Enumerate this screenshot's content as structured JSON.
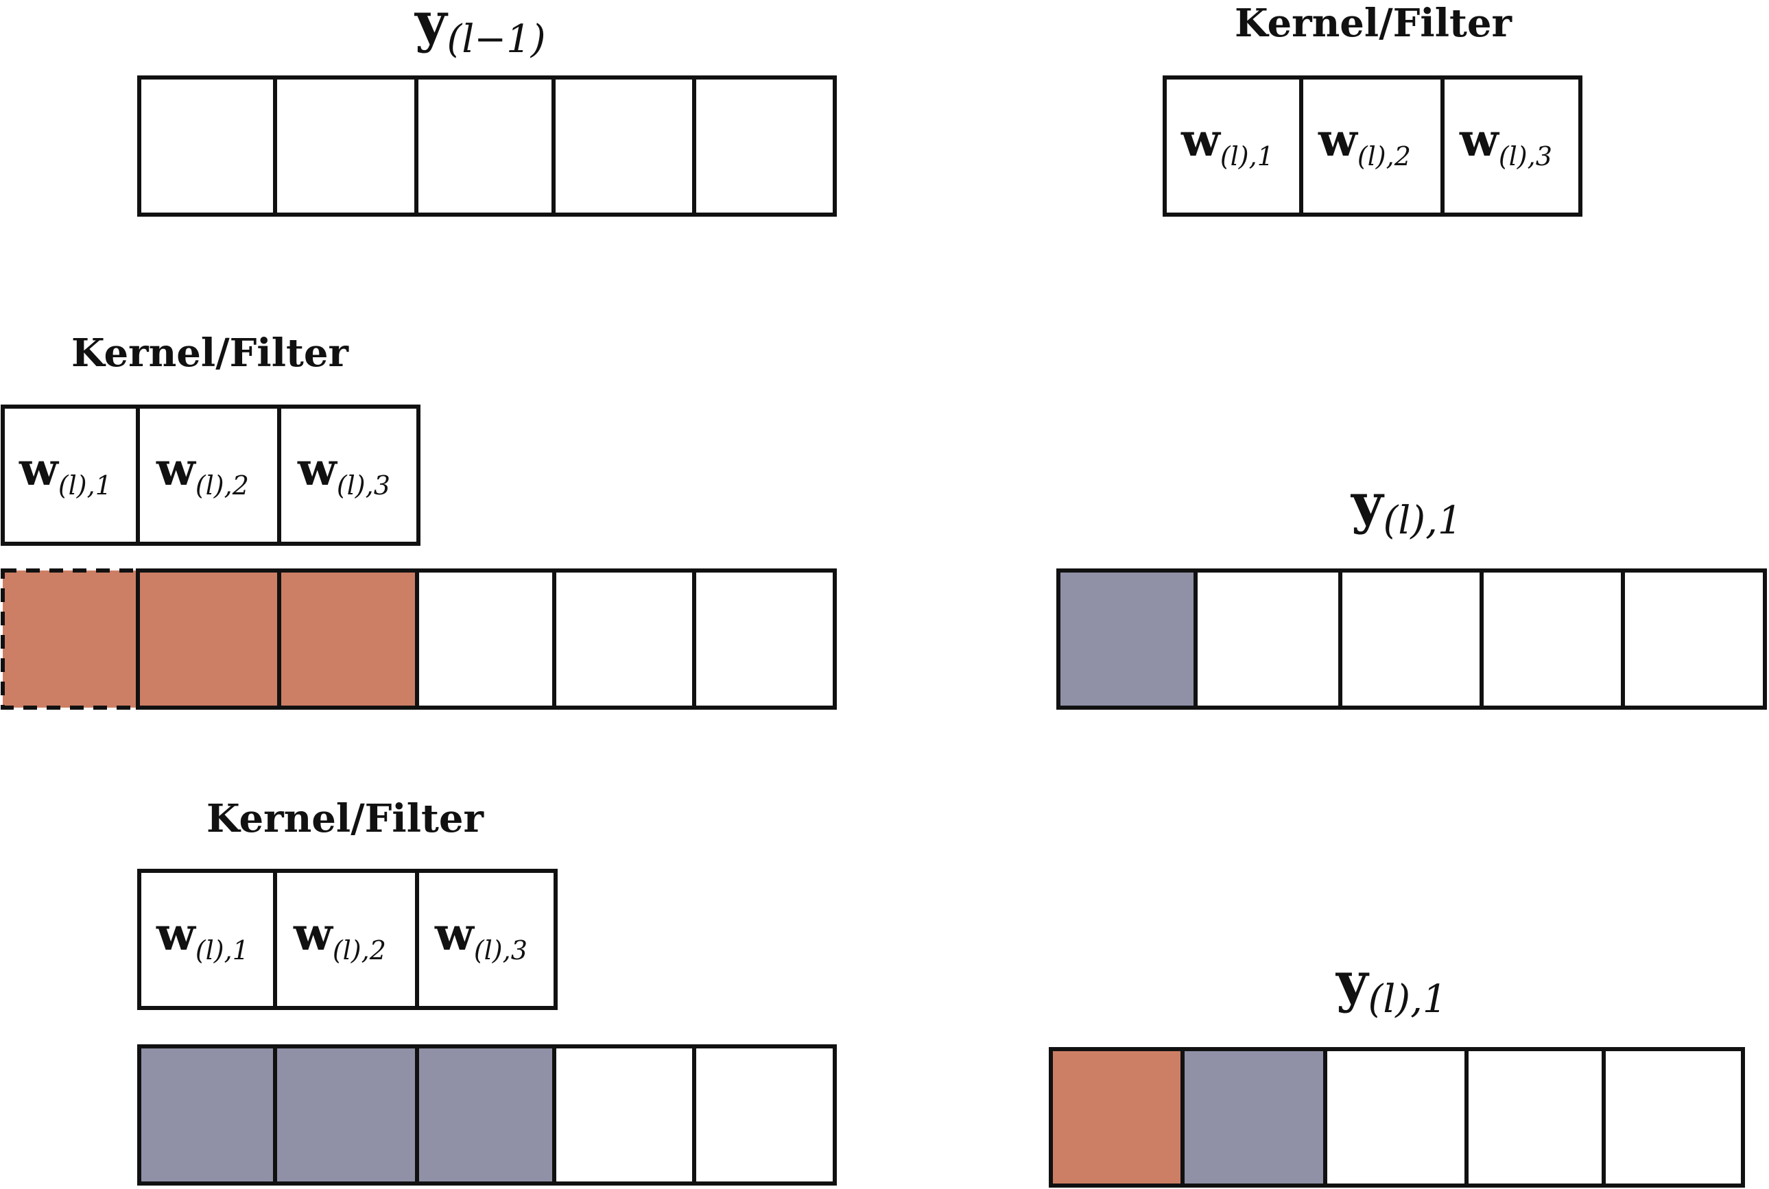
{
  "labels": {
    "input_vector_main": "y",
    "input_vector_sub": "(l−1)",
    "output_vector_main": "y",
    "output_vector_sub": "(l),1",
    "kernel_title": "Kernel/Filter",
    "weight_main": "w",
    "weight_subs": [
      "(l),1",
      "(l),2",
      "(l),3"
    ]
  },
  "colors": {
    "orange_highlight": "#cd7f65",
    "gray_highlight": "#9091a7",
    "border": "#111111",
    "empty": "#ffffff"
  },
  "panels": [
    {
      "name": "input-vector",
      "cells": [
        "empty",
        "empty",
        "empty",
        "empty",
        "empty"
      ]
    },
    {
      "name": "kernel-top-right",
      "cells": [
        "w1",
        "w2",
        "w3"
      ]
    },
    {
      "name": "step-1-input",
      "cells": [
        "orange-padding",
        "orange",
        "orange",
        "empty",
        "empty",
        "empty"
      ]
    },
    {
      "name": "step-1-output",
      "cells": [
        "gray",
        "empty",
        "empty",
        "empty",
        "empty"
      ]
    },
    {
      "name": "step-2-input",
      "cells": [
        "gray",
        "gray",
        "gray",
        "empty",
        "empty"
      ]
    },
    {
      "name": "step-2-output",
      "cells": [
        "orange",
        "gray",
        "empty",
        "empty",
        "empty"
      ]
    }
  ]
}
